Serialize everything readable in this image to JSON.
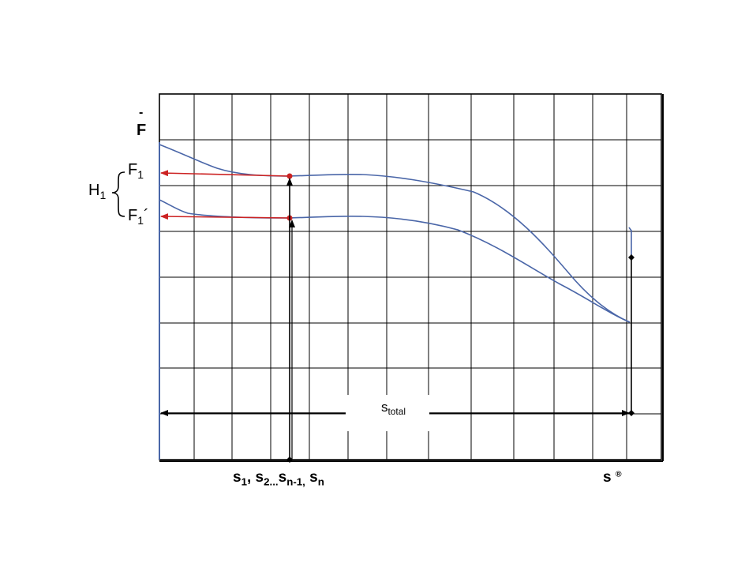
{
  "diagram": {
    "y_axis_label_bar": "-",
    "y_axis_label": "F",
    "upper_level": {
      "main": "F",
      "sub": "1"
    },
    "lower_level": {
      "main": "F",
      "sub": "1",
      "prime": "´"
    },
    "range": {
      "main": "H",
      "sub": "1"
    },
    "total_travel": {
      "main": "s",
      "sub": "total"
    },
    "positions": {
      "s1_main": "s",
      "s1_sub": "1",
      "sep1": ", ",
      "s2_main": "s",
      "s2_sub": "2",
      "ellipsis": "...",
      "sn1_main": "s",
      "sn1_sub": "n-1,",
      "sn_main": " s",
      "sn_sub": "n"
    },
    "end_position": {
      "main": "s",
      "mark": "®"
    },
    "colors": {
      "grid": "#000000",
      "curve": "#4a66a8",
      "arrow_red": "#cc2222",
      "arrow_black": "#000000"
    }
  }
}
